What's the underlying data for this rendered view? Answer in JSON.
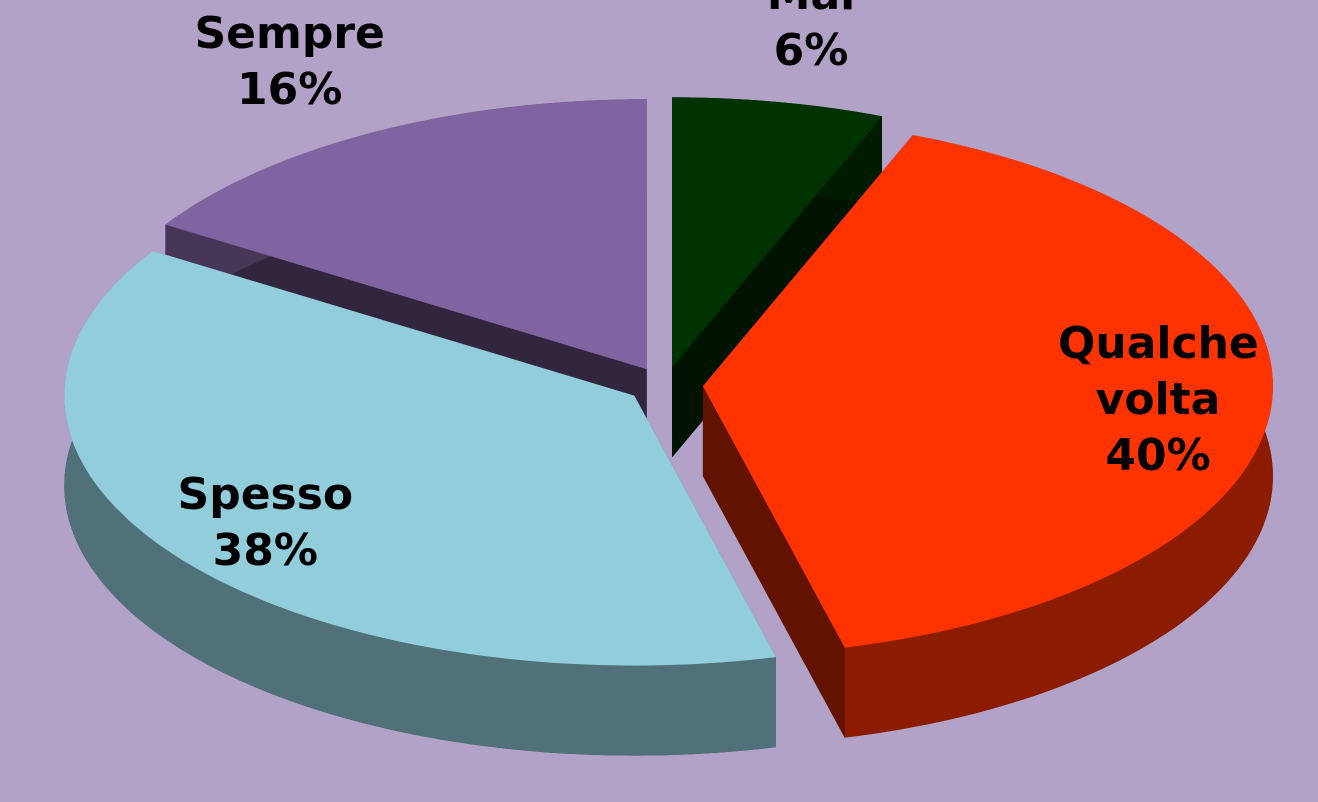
{
  "chart_data": {
    "type": "pie3d",
    "categories": [
      "Mai",
      "Qualche volta",
      "Spesso",
      "Sempre"
    ],
    "values": [
      6,
      40,
      38,
      16
    ],
    "value_labels": [
      "6%",
      "40%",
      "38%",
      "16%"
    ],
    "colors": [
      "#003300",
      "#ff3300",
      "#92cddc",
      "#8064a2"
    ]
  }
}
